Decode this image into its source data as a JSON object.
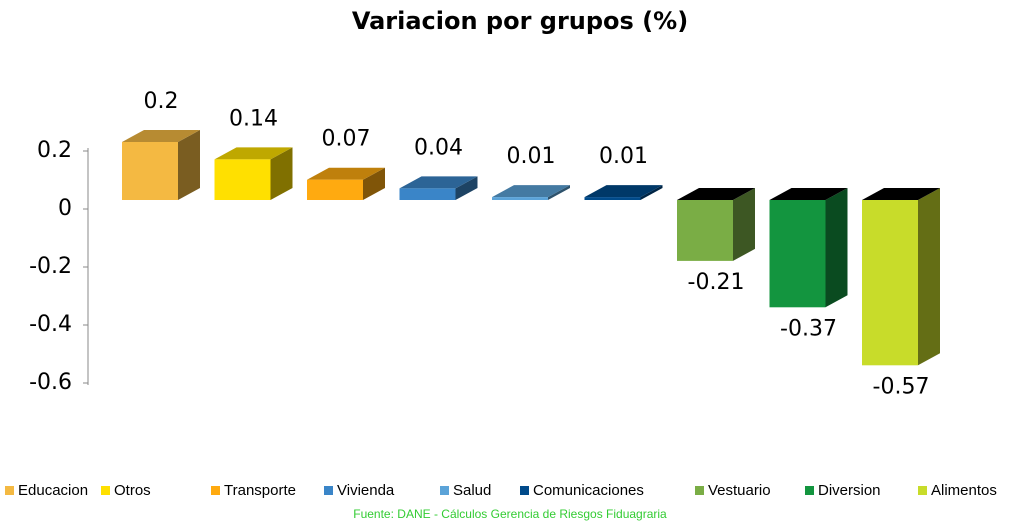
{
  "chart_data": {
    "type": "bar3d",
    "title": "Variacion por grupos (%)",
    "categories": [
      "Educacion",
      "Otros",
      "Transporte",
      "Vivienda",
      "Salud",
      "Comunicaciones",
      "Vestuario",
      "Diversion",
      "Alimentos"
    ],
    "values": [
      0.2,
      0.14,
      0.07,
      0.04,
      0.01,
      0.01,
      -0.21,
      -0.37,
      -0.57
    ],
    "colors": [
      "#f4b942",
      "#ffe000",
      "#ffaa10",
      "#3a85c8",
      "#5ba3d8",
      "#004a8a",
      "#7aad45",
      "#13953f",
      "#c8dc2a"
    ],
    "ylim": [
      -0.6,
      0.2
    ],
    "yticks": [
      0.2,
      0,
      -0.2,
      -0.4,
      -0.6
    ],
    "source": "Fuente: DANE - Cálculos Gerencia de Riesgos Fiduagraria"
  }
}
